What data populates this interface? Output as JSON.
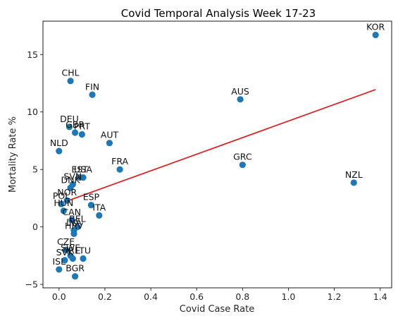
{
  "chart_data": {
    "type": "scatter",
    "title": "Covid Temporal Analysis Week 17-23",
    "xlabel": "Covid Case Rate",
    "ylabel": "Mortality Rate %",
    "xlim": [
      -0.07,
      1.45
    ],
    "ylim": [
      -5.3,
      17.9
    ],
    "x_ticks": [
      0.0,
      0.2,
      0.4,
      0.6,
      0.8,
      1.0,
      1.2,
      1.4
    ],
    "x_tick_labels": [
      "0.0",
      "0.2",
      "0.4",
      "0.6",
      "0.8",
      "1.0",
      "1.2",
      "1.4"
    ],
    "y_ticks": [
      -5,
      0,
      5,
      10,
      15
    ],
    "y_tick_labels": [
      "−5",
      "0",
      "5",
      "10",
      "15"
    ],
    "grid": false,
    "point_color": "#1f77b4",
    "trend_color": "#d62728",
    "trendline": {
      "x": [
        0.0,
        1.38
      ],
      "y": [
        2.0,
        11.95
      ]
    },
    "points": [
      {
        "label": "KOR",
        "x": 1.38,
        "y": 16.7
      },
      {
        "label": "CHL",
        "x": 0.05,
        "y": 12.7
      },
      {
        "label": "FIN",
        "x": 0.145,
        "y": 11.5
      },
      {
        "label": "AUS",
        "x": 0.79,
        "y": 11.1
      },
      {
        "label": "DEU",
        "x": 0.045,
        "y": 8.7
      },
      {
        "label": "GBR",
        "x": 0.07,
        "y": 8.2
      },
      {
        "label": "PRT",
        "x": 0.1,
        "y": 8.05
      },
      {
        "label": "AUT",
        "x": 0.22,
        "y": 7.3
      },
      {
        "label": "NLD",
        "x": 0.0,
        "y": 6.6
      },
      {
        "label": "FRA",
        "x": 0.265,
        "y": 5.0
      },
      {
        "label": "GRC",
        "x": 0.8,
        "y": 5.4
      },
      {
        "label": "NZL",
        "x": 1.285,
        "y": 3.85
      },
      {
        "label": "EST",
        "x": 0.09,
        "y": 4.3
      },
      {
        "label": "USA",
        "x": 0.105,
        "y": 4.3
      },
      {
        "label": "SVN",
        "x": 0.06,
        "y": 3.7
      },
      {
        "label": "DNK",
        "x": 0.05,
        "y": 3.4
      },
      {
        "label": "NOR",
        "x": 0.035,
        "y": 2.3
      },
      {
        "label": "ESP",
        "x": 0.14,
        "y": 1.9
      },
      {
        "label": "POL",
        "x": 0.01,
        "y": 2.0
      },
      {
        "label": "HUN",
        "x": 0.02,
        "y": 1.4
      },
      {
        "label": "ITA",
        "x": 0.175,
        "y": 1.0
      },
      {
        "label": "CAN",
        "x": 0.055,
        "y": 0.6
      },
      {
        "label": "BEL",
        "x": 0.08,
        "y": 0.0
      },
      {
        "label": "LVA",
        "x": 0.065,
        "y": -0.3
      },
      {
        "label": "HRV",
        "x": 0.065,
        "y": -0.6
      },
      {
        "label": "CZE",
        "x": 0.03,
        "y": -2.0
      },
      {
        "label": "SWE",
        "x": 0.05,
        "y": -2.5
      },
      {
        "label": "LTU",
        "x": 0.105,
        "y": -2.75
      },
      {
        "label": "SVK",
        "x": 0.025,
        "y": -2.9
      },
      {
        "label": "IRL",
        "x": 0.06,
        "y": -2.75
      },
      {
        "label": "ISL",
        "x": 0.0,
        "y": -3.7
      },
      {
        "label": "BGR",
        "x": 0.07,
        "y": -4.3
      }
    ]
  }
}
